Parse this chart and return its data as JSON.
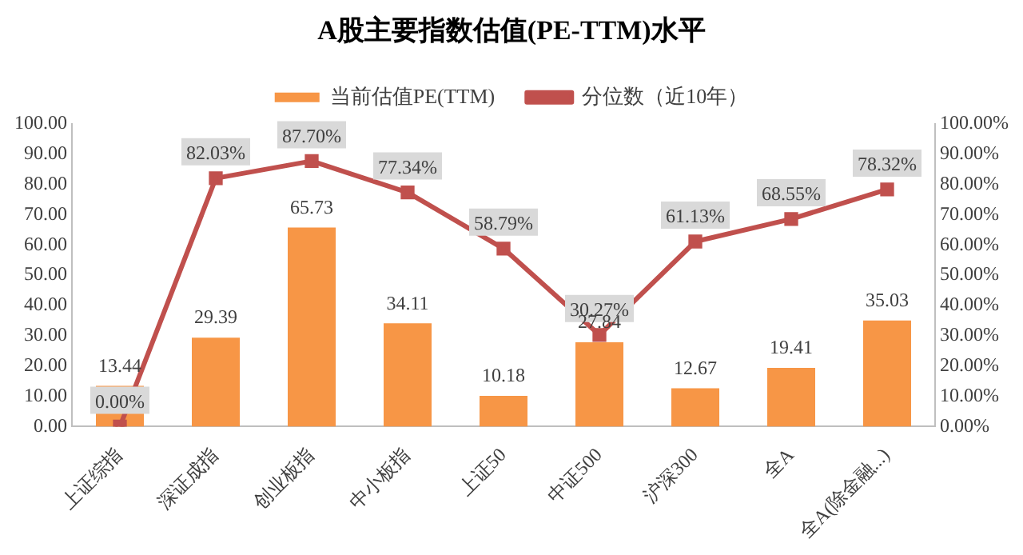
{
  "chart_data": {
    "type": "bar",
    "title": "A股主要指数估值(PE-TTM)水平",
    "categories": [
      "上证综指",
      "深证成指",
      "创业板指",
      "中小板指",
      "上证50",
      "中证500",
      "沪深300",
      "全A",
      "全A(除金融...)"
    ],
    "series": [
      {
        "name": "当前估值PE(TTM)",
        "color": "#f79646",
        "values": [
          13.44,
          29.39,
          65.73,
          34.11,
          10.18,
          27.84,
          12.67,
          19.41,
          35.03
        ],
        "value_labels": [
          "13.44",
          "29.39",
          "65.73",
          "34.11",
          "10.18",
          "27.84",
          "12.67",
          "19.41",
          "35.03"
        ]
      },
      {
        "name": "分位数（近10年）",
        "type": "line",
        "axis": "y2",
        "color": "#c0504d",
        "values": [
          0.0,
          82.03,
          87.7,
          77.34,
          58.79,
          30.27,
          61.13,
          68.55,
          78.32
        ],
        "value_labels": [
          "0.00%",
          "82.03%",
          "87.70%",
          "77.34%",
          "58.79%",
          "30.27%",
          "61.13%",
          "68.55%",
          "78.32%"
        ]
      }
    ],
    "ylim": [
      0,
      100
    ],
    "yticks": [
      {
        "value": 0,
        "label": "0.00"
      },
      {
        "value": 10,
        "label": "10.00"
      },
      {
        "value": 20,
        "label": "20.00"
      },
      {
        "value": 30,
        "label": "30.00"
      },
      {
        "value": 40,
        "label": "40.00"
      },
      {
        "value": 50,
        "label": "50.00"
      },
      {
        "value": 60,
        "label": "60.00"
      },
      {
        "value": 70,
        "label": "70.00"
      },
      {
        "value": 80,
        "label": "80.00"
      },
      {
        "value": 90,
        "label": "90.00"
      },
      {
        "value": 100,
        "label": "100.00"
      }
    ],
    "y2lim": [
      0,
      100
    ],
    "y2ticks": [
      {
        "value": 0,
        "label": "0.00%"
      },
      {
        "value": 10,
        "label": "10.00%"
      },
      {
        "value": 20,
        "label": "20.00%"
      },
      {
        "value": 30,
        "label": "30.00%"
      },
      {
        "value": 40,
        "label": "40.00%"
      },
      {
        "value": 50,
        "label": "50.00%"
      },
      {
        "value": 60,
        "label": "60.00%"
      },
      {
        "value": 70,
        "label": "70.00%"
      },
      {
        "value": 80,
        "label": "80.00%"
      },
      {
        "value": 90,
        "label": "90.00%"
      },
      {
        "value": 100,
        "label": "100.00%"
      }
    ],
    "grid": false,
    "legend": "top",
    "marker": "square",
    "line_style": "solid"
  }
}
